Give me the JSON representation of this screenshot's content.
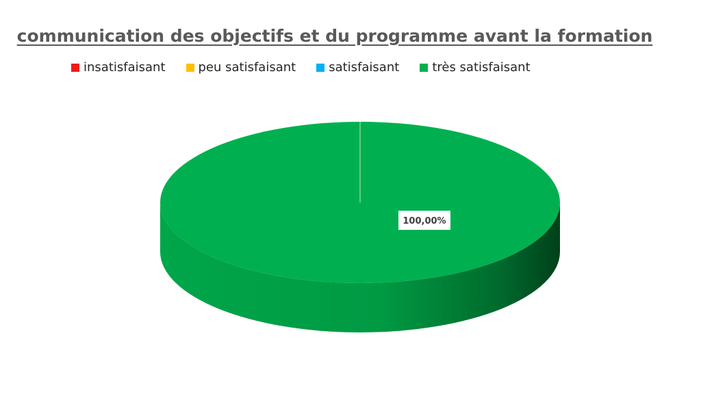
{
  "chart_data": {
    "type": "pie",
    "title": "communication des objectifs et du programme avant la formation",
    "categories": [
      "insatisfaisant",
      "peu satisfaisant",
      "satisfaisant",
      "très satisfaisant"
    ],
    "values": [
      0,
      0,
      0,
      100
    ],
    "colors": [
      "#ee1c1c",
      "#ffc000",
      "#00b0f0",
      "#00b050"
    ],
    "data_labels": [
      "",
      "",
      "",
      "100,00%"
    ],
    "legend_position": "top",
    "style": "3d-pie"
  }
}
